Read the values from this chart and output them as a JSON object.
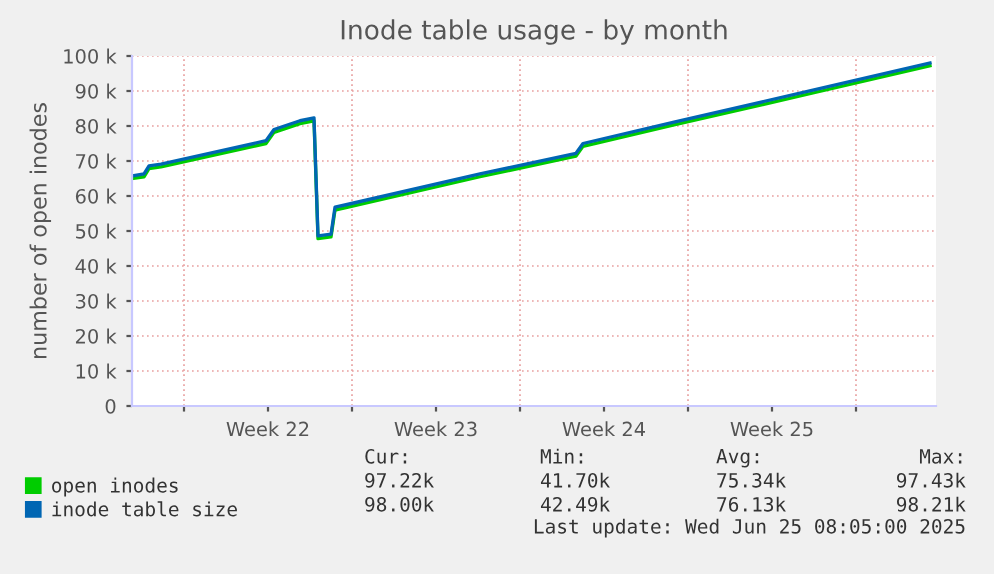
{
  "chart_data": {
    "type": "line",
    "title": "Inode table usage - by month",
    "ylabel": "number of open inodes",
    "xlim": [
      "2025-05-22T20:00",
      "2025-06-25T08:00"
    ],
    "xticks": [
      {
        "value": "2025-05-25",
        "label": null
      },
      {
        "value": "2025-05-28T12:00",
        "label": "Week 22"
      },
      {
        "value": "2025-06-01",
        "label": null
      },
      {
        "value": "2025-06-04T12:00",
        "label": "Week 23"
      },
      {
        "value": "2025-06-08",
        "label": null
      },
      {
        "value": "2025-06-11T12:00",
        "label": "Week 24"
      },
      {
        "value": "2025-06-15",
        "label": null
      },
      {
        "value": "2025-06-18T12:00",
        "label": "Week 25"
      },
      {
        "value": "2025-06-22",
        "label": null
      }
    ],
    "ylim": [
      0,
      100000
    ],
    "yticks": [
      {
        "value": 0,
        "label": "0"
      },
      {
        "value": 10000,
        "label": "10 k"
      },
      {
        "value": 20000,
        "label": "20 k"
      },
      {
        "value": 30000,
        "label": "30 k"
      },
      {
        "value": 40000,
        "label": "40 k"
      },
      {
        "value": 50000,
        "label": "50 k"
      },
      {
        "value": 60000,
        "label": "60 k"
      },
      {
        "value": 70000,
        "label": "70 k"
      },
      {
        "value": 80000,
        "label": "80 k"
      },
      {
        "value": 90000,
        "label": "90 k"
      },
      {
        "value": 100000,
        "label": "100 k"
      }
    ],
    "grid": true,
    "legend": "bottom",
    "marker": "none",
    "line_style": "solid",
    "series": [
      {
        "name": "open inodes",
        "color": "#00cc00",
        "x": [
          "2025-05-22T20:00",
          "2025-05-23T08:00",
          "2025-05-23T13:00",
          "2025-05-24T01:00",
          "2025-05-28T10:00",
          "2025-05-28T18:00",
          "2025-05-29T20:00",
          "2025-05-30T10:00",
          "2025-05-30T14:00",
          "2025-05-31T03:00",
          "2025-05-31T07:00",
          "2025-05-31T18:00",
          "2025-06-06T08:00",
          "2025-06-10T08:00",
          "2025-06-10T15:00",
          "2025-06-14T10:00",
          "2025-06-20T06:00",
          "2025-06-25T02:00"
        ],
        "values": [
          65000,
          65500,
          67800,
          68300,
          75000,
          78200,
          80700,
          81500,
          47800,
          48300,
          56000,
          56700,
          65500,
          71400,
          74200,
          80300,
          89500,
          97200
        ]
      },
      {
        "name": "inode table size",
        "color": "#0066b3",
        "x": [
          "2025-05-22T20:00",
          "2025-05-23T08:00",
          "2025-05-23T13:00",
          "2025-05-24T01:00",
          "2025-05-28T10:00",
          "2025-05-28T18:00",
          "2025-05-29T20:00",
          "2025-05-30T10:00",
          "2025-05-30T14:00",
          "2025-05-31T03:00",
          "2025-05-31T07:00",
          "2025-05-31T18:00",
          "2025-06-06T08:00",
          "2025-06-10T08:00",
          "2025-06-10T15:00",
          "2025-06-14T10:00",
          "2025-06-20T06:00",
          "2025-06-25T02:00"
        ],
        "values": [
          65700,
          66300,
          68600,
          69100,
          75800,
          79000,
          81500,
          82300,
          48600,
          49100,
          56800,
          57500,
          66300,
          72200,
          75000,
          81100,
          90300,
          98000
        ]
      }
    ],
    "annotations": [
      "Cur:",
      "Min:",
      "Avg:",
      "Max:",
      "97.22k",
      "41.70k",
      "75.34k",
      "97.43k",
      "98.00k",
      "42.49k",
      "76.13k",
      "98.21k",
      "Last update: Wed Jun 25 08:05:00 2025"
    ]
  }
}
